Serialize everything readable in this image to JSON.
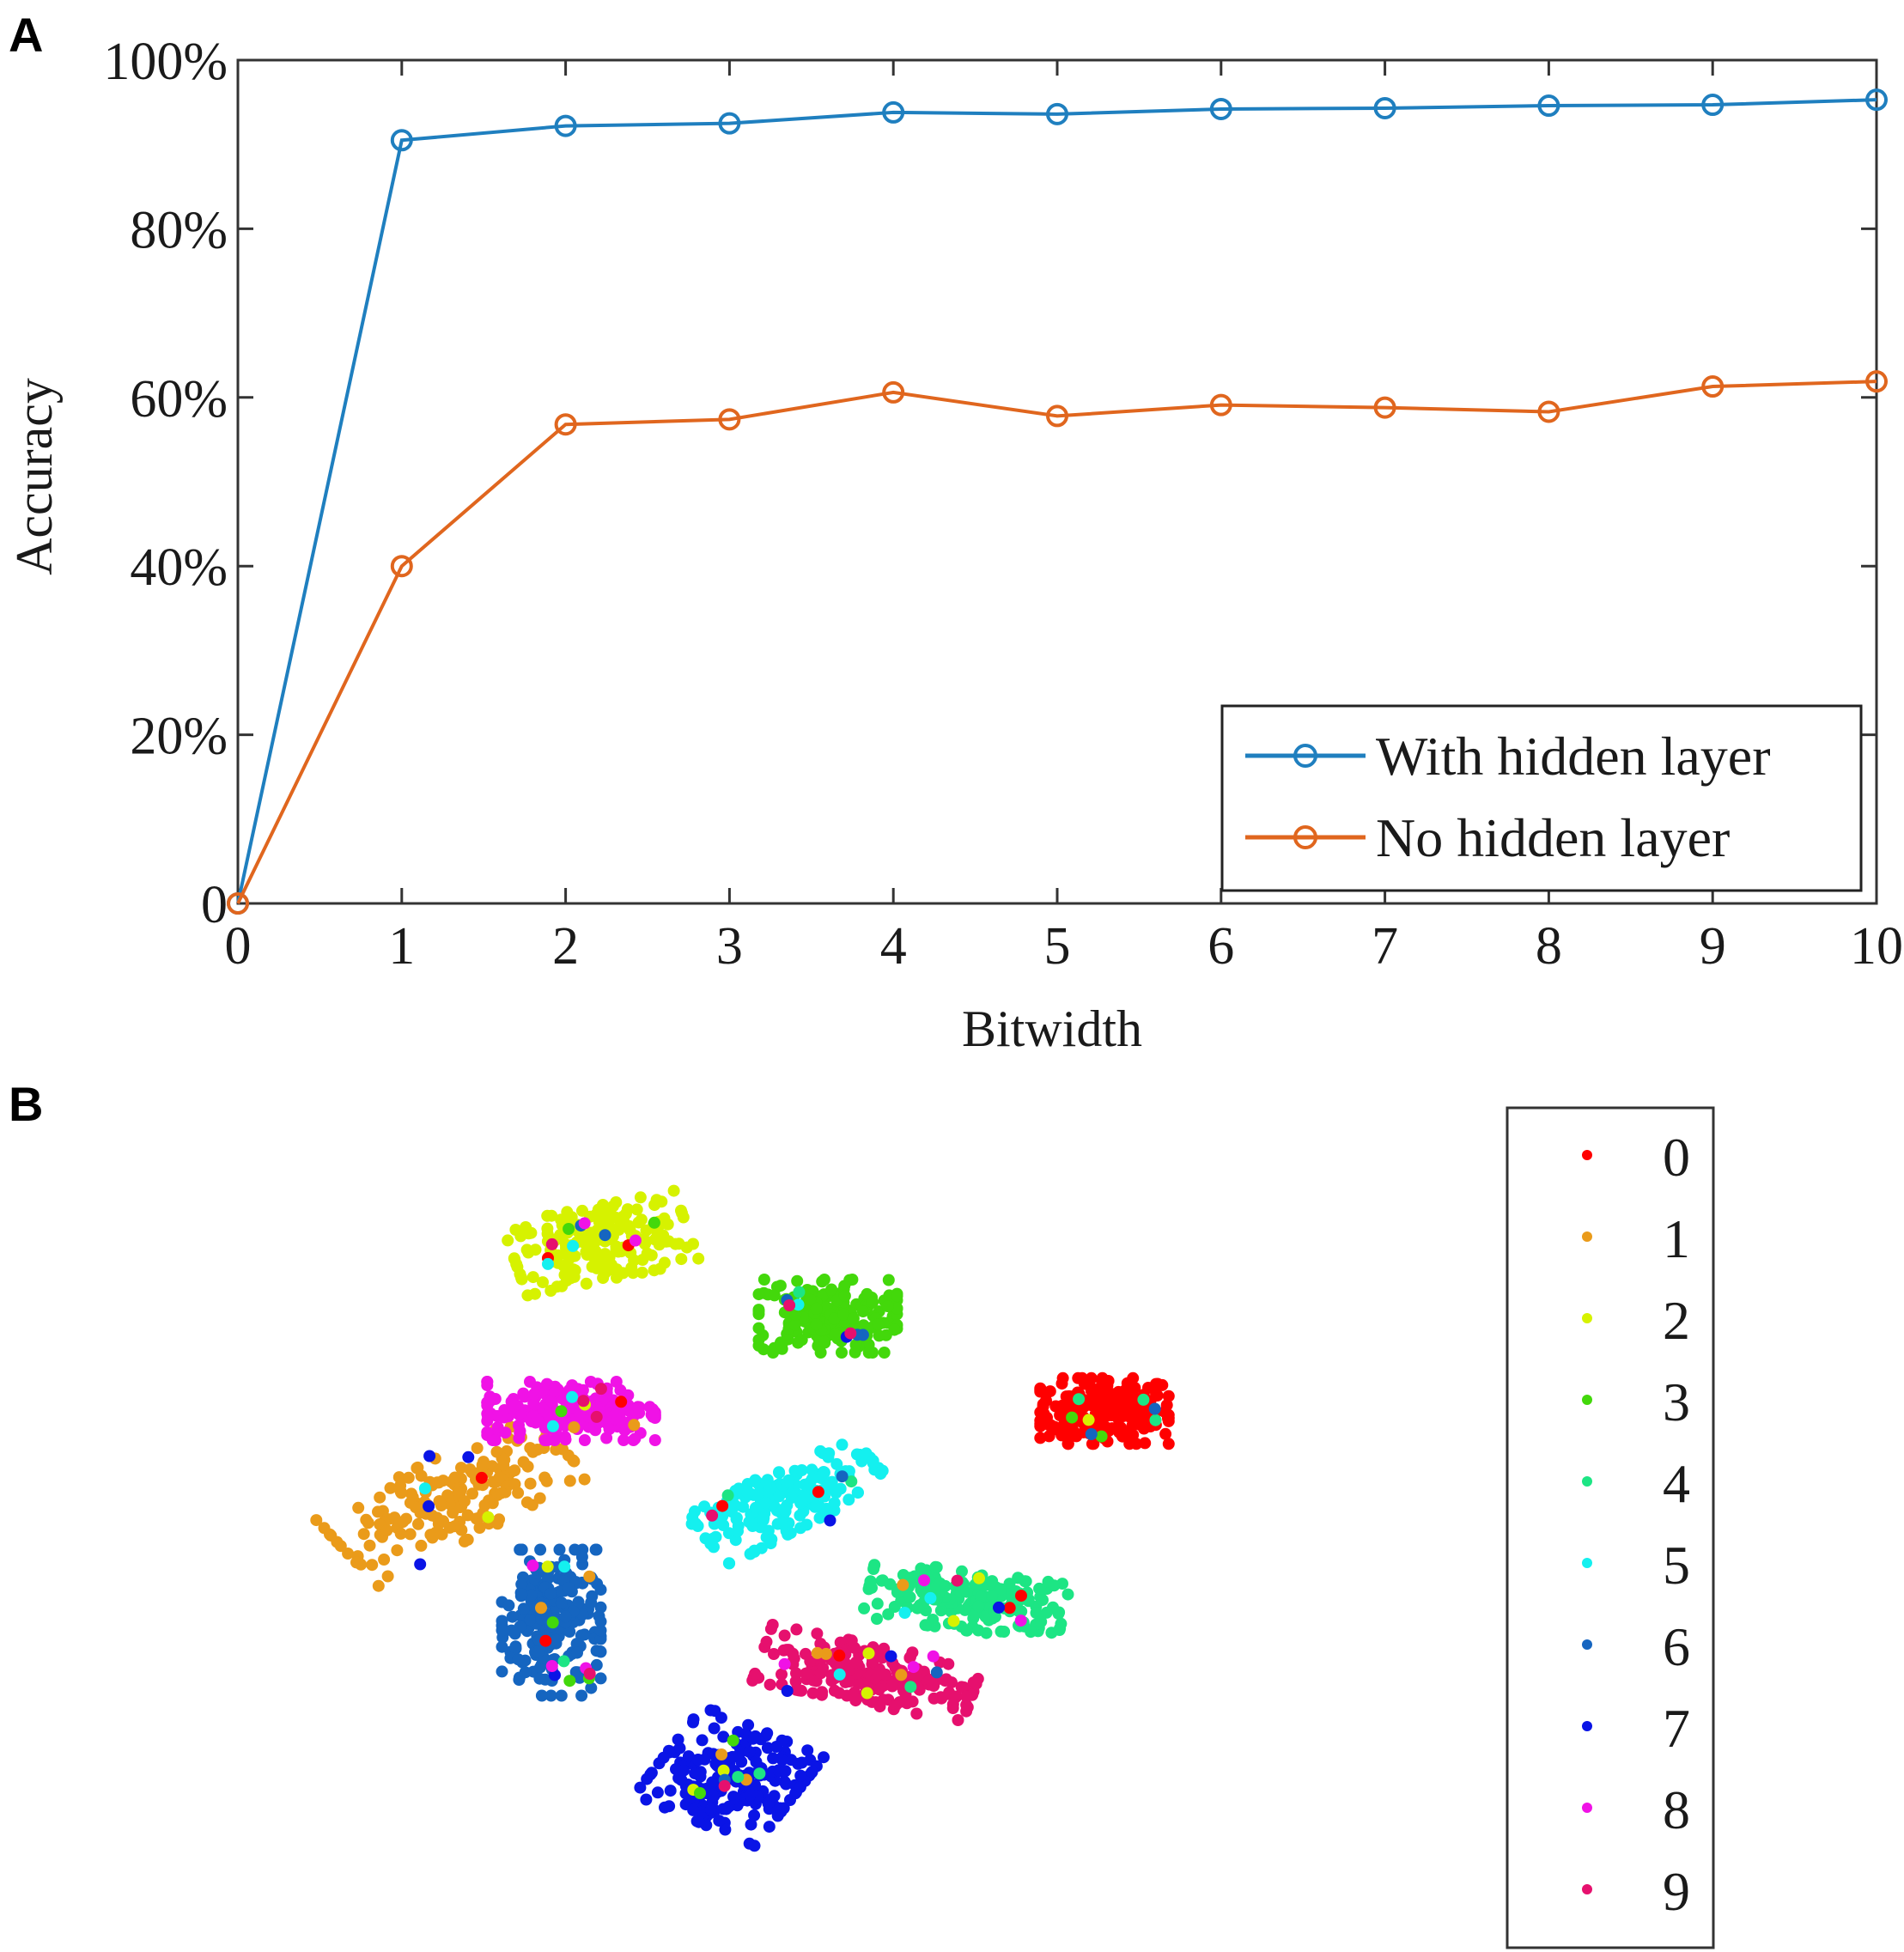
{
  "chart_data": [
    {
      "panel_label": "A",
      "type": "line",
      "xlabel": "Bitwidth",
      "ylabel": "Accuracy",
      "xlim": [
        0,
        10
      ],
      "ylim": [
        0,
        100
      ],
      "x_ticks": [
        0,
        1,
        2,
        3,
        4,
        5,
        6,
        7,
        8,
        9,
        10
      ],
      "x_tick_labels": [
        "0",
        "1",
        "2",
        "3",
        "4",
        "5",
        "6",
        "7",
        "8",
        "9",
        "10"
      ],
      "y_ticks": [
        0,
        20,
        40,
        60,
        80,
        100
      ],
      "y_tick_labels": [
        "0",
        "20%",
        "40%",
        "60%",
        "80%",
        "100%"
      ],
      "grid": false,
      "legend_position": "bottom-right",
      "x": [
        0,
        1,
        2,
        3,
        4,
        5,
        6,
        7,
        8,
        9,
        10
      ],
      "series": [
        {
          "name": "With hidden layer",
          "color": "#1f7fbf",
          "values": [
            0,
            90.5,
            92.2,
            92.5,
            93.8,
            93.6,
            94.2,
            94.3,
            94.6,
            94.7,
            95.3
          ]
        },
        {
          "name": "No hidden layer",
          "color": "#e0661e",
          "values": [
            0,
            40,
            56.8,
            57.4,
            60.6,
            57.8,
            59.1,
            58.8,
            58.3,
            61.3,
            61.9
          ]
        }
      ]
    },
    {
      "panel_label": "B",
      "type": "scatter",
      "title": "",
      "xlabel": "",
      "ylabel": "",
      "axes": "hidden",
      "legend_position": "right",
      "xlim": [
        0,
        100
      ],
      "ylim": [
        0,
        100
      ],
      "classes": [
        {
          "label": "0",
          "color": "#ff0000",
          "center": [
            84,
            62
          ],
          "spread": [
            6.5,
            4.5
          ],
          "count": 220
        },
        {
          "label": "1",
          "color": "#ea9b1a",
          "center": [
            18,
            50
          ],
          "spread": [
            5.5,
            13
          ],
          "angle": -55,
          "count": 180
        },
        {
          "label": "2",
          "color": "#d6f200",
          "center": [
            33,
            85
          ],
          "spread": [
            9,
            5
          ],
          "angle": 15,
          "count": 200
        },
        {
          "label": "3",
          "color": "#43d80b",
          "center": [
            56,
            75
          ],
          "spread": [
            7,
            5
          ],
          "count": 200
        },
        {
          "label": "4",
          "color": "#1de584",
          "center": [
            70,
            36
          ],
          "spread": [
            10,
            4
          ],
          "angle": -10,
          "count": 190
        },
        {
          "label": "5",
          "color": "#14f0ef",
          "center": [
            52,
            50
          ],
          "spread": [
            10,
            4
          ],
          "angle": 35,
          "count": 180
        },
        {
          "label": "6",
          "color": "#1565c0",
          "center": [
            28,
            33
          ],
          "spread": [
            5,
            10
          ],
          "count": 200
        },
        {
          "label": "7",
          "color": "#0a14e6",
          "center": [
            46,
            12
          ],
          "spread": [
            7,
            7
          ],
          "angle": -30,
          "count": 200
        },
        {
          "label": "8",
          "color": "#f012e6",
          "center": [
            30,
            62
          ],
          "spread": [
            8.5,
            4
          ],
          "count": 220
        },
        {
          "label": "9",
          "color": "#e6106e",
          "center": [
            60,
            26
          ],
          "spread": [
            11,
            4
          ],
          "angle": -15,
          "count": 200
        }
      ]
    }
  ]
}
